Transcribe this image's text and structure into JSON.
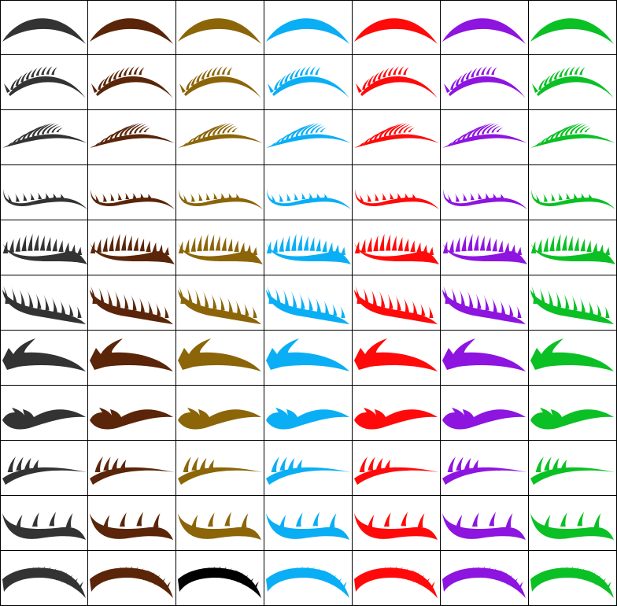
{
  "palette": [
    {
      "name": "dark-gray",
      "hex": "#333333"
    },
    {
      "name": "brown",
      "hex": "#5a2508"
    },
    {
      "name": "olive-gold",
      "hex": "#8b6508"
    },
    {
      "name": "sky-blue",
      "hex": "#0aaef5"
    },
    {
      "name": "red",
      "hex": "#ff0a0a"
    },
    {
      "name": "purple",
      "hex": "#8e14e0"
    },
    {
      "name": "green",
      "hex": "#0ac024"
    }
  ],
  "styles": [
    {
      "name": "thick-arch-brow"
    },
    {
      "name": "fine-lash-sweep"
    },
    {
      "name": "feathered-wisp"
    },
    {
      "name": "curled-lash-row"
    },
    {
      "name": "dense-volume-lash"
    },
    {
      "name": "long-spike-lash"
    },
    {
      "name": "bold-wing-liner"
    },
    {
      "name": "double-wave-liner"
    },
    {
      "name": "spiky-swoosh"
    },
    {
      "name": "fork-spike-liner"
    },
    {
      "name": "dramatic-full-lash"
    }
  ],
  "overrides": [
    {
      "row": 10,
      "col": 2,
      "hex": "#000000",
      "name": "black"
    }
  ]
}
